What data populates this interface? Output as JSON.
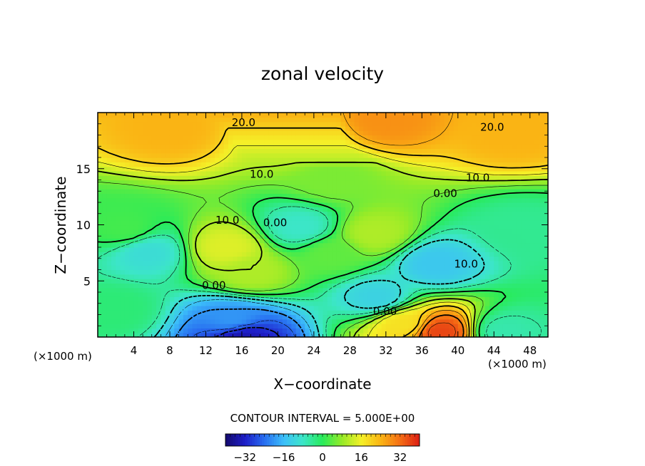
{
  "chart_data": {
    "type": "heatmap",
    "title": "zonal velocity",
    "xlabel": "X−coordinate",
    "ylabel": "Z−coordinate",
    "xlim": [
      0,
      50
    ],
    "ylim": [
      0,
      20
    ],
    "x_ticks": [
      4,
      8,
      12,
      16,
      20,
      24,
      28,
      32,
      36,
      40,
      44,
      48
    ],
    "x_tick_labels": [
      "4",
      "8",
      "12",
      "16",
      "20",
      "24",
      "28",
      "32",
      "36",
      "40",
      "44",
      "48"
    ],
    "y_ticks": [
      5,
      10,
      15
    ],
    "y_tick_labels": [
      "5",
      "10",
      "15"
    ],
    "x_unit_left": "(×1000 m)",
    "x_unit_right": "(×1000 m)",
    "contour_interval_label": "CONTOUR INTERVAL = 5.000E+00",
    "contour_labels": [
      {
        "text": "20.0",
        "x": 16.2,
        "z": 19.1
      },
      {
        "text": "20.0",
        "x": 43.8,
        "z": 18.7
      },
      {
        "text": "10.0",
        "x": 18.2,
        "z": 14.5
      },
      {
        "text": "10.0",
        "x": 42.2,
        "z": 14.2
      },
      {
        "text": "0.00",
        "x": 38.6,
        "z": 12.8
      },
      {
        "text": "0.00",
        "x": 19.7,
        "z": 10.2
      },
      {
        "text": "10.0",
        "x": 14.4,
        "z": 10.4
      },
      {
        "text": "10.0",
        "x": 40.9,
        "z": 6.5
      },
      {
        "text": "0.00",
        "x": 12.9,
        "z": 4.6
      },
      {
        "text": "0.00",
        "x": 31.9,
        "z": 2.3
      }
    ],
    "field_features": [
      {
        "x": 38,
        "z": 0.5,
        "value": 36
      },
      {
        "x": 34,
        "z": 1.2,
        "value": 18
      },
      {
        "x": 32,
        "z": 19.4,
        "value": 28
      },
      {
        "x": 8,
        "z": 18.6,
        "value": 24
      },
      {
        "x": 46,
        "z": 18.3,
        "value": 24
      },
      {
        "x": 22,
        "z": 17.5,
        "value": 12
      },
      {
        "x": 14.3,
        "z": 8.0,
        "value": 14
      },
      {
        "x": 17,
        "z": 5.8,
        "value": 10
      },
      {
        "x": 30.7,
        "z": 9.2,
        "value": 10
      },
      {
        "x": 26,
        "z": 7.5,
        "value": 4
      },
      {
        "x": 3,
        "z": 9.6,
        "value": 2
      },
      {
        "x": 5.5,
        "z": 7.6,
        "value": -10
      },
      {
        "x": 16,
        "z": 0.1,
        "value": -34
      },
      {
        "x": 15,
        "z": 1.5,
        "value": -20
      },
      {
        "x": 22.5,
        "z": 9.8,
        "value": -8
      },
      {
        "x": 37.5,
        "z": 6.6,
        "value": -14
      },
      {
        "x": 31,
        "z": 3.5,
        "value": -12
      },
      {
        "x": 47,
        "z": 9.5,
        "value": -4
      },
      {
        "x": 2,
        "z": 2.5,
        "value": -2
      },
      {
        "x": 45,
        "z": 0.5,
        "value": -6
      },
      {
        "x": 26,
        "z": 14.0,
        "value": 6
      }
    ],
    "colorbar": {
      "ticks": [
        -32,
        -16,
        0,
        16,
        32
      ],
      "tick_labels": [
        "−32",
        "−16",
        "0",
        "16",
        "32"
      ],
      "range": [
        -40,
        40
      ]
    }
  }
}
